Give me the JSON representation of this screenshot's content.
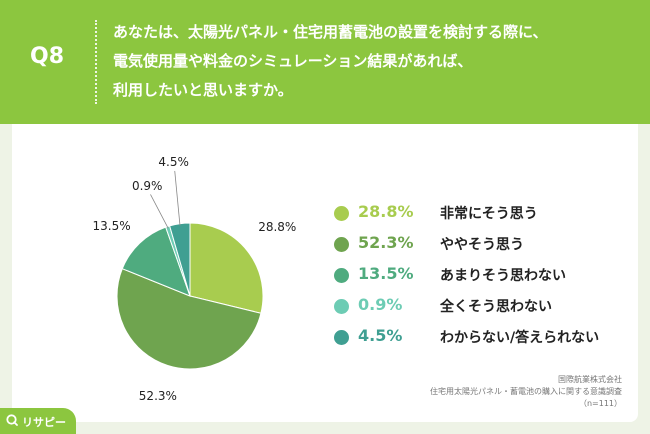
{
  "header": {
    "q_label": "Q8",
    "question_lines": [
      "あなたは、太陽光パネル・住宅用蓄電池の設置を検討する際に、",
      "電気使用量や料金のシミュレーション結果があれば、",
      "利用したいと思いますか。"
    ]
  },
  "chart_data": {
    "type": "pie",
    "title": "",
    "slices": [
      {
        "label": "非常にそう思う",
        "value": 28.8,
        "display": "28.8%",
        "color": "#a8cc4f"
      },
      {
        "label": "ややそう思う",
        "value": 52.3,
        "display": "52.3%",
        "color": "#6fa44f"
      },
      {
        "label": "あまりそう思わない",
        "value": 13.5,
        "display": "13.5%",
        "color": "#4fab7f"
      },
      {
        "label": "全くそう思わない",
        "value": 0.9,
        "display": "0.9%",
        "color": "#6dccb4"
      },
      {
        "label": "わからない/答えられない",
        "value": 4.5,
        "display": "4.5%",
        "color": "#3f9f92"
      }
    ],
    "start_angle_deg": 0,
    "direction": "clockwise",
    "legend_position": "right"
  },
  "source": {
    "line1": "国際航業株式会社",
    "line2": "住宅用太陽光パネル・蓄電池の購入に関する意識調査",
    "line3": "（n=111）"
  },
  "brand": {
    "name": "リサピー",
    "color": "#8cc63f",
    "icon": "magnifier-q-icon"
  }
}
